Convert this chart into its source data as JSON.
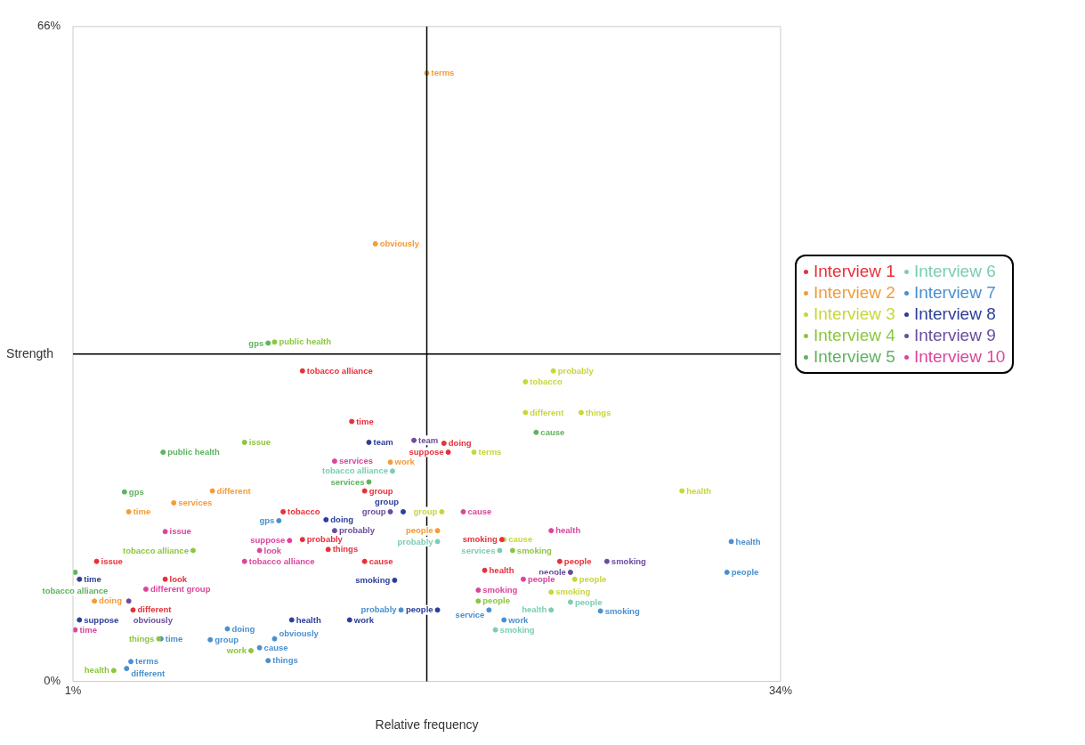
{
  "chart_data": {
    "type": "scatter",
    "xlabel": "Relative frequency",
    "ylabel": "Strength",
    "xlim": [
      1,
      34
    ],
    "ylim": [
      0,
      66
    ],
    "xticks": [
      {
        "value": 1,
        "label": "1%"
      },
      {
        "value": 34,
        "label": "34%"
      }
    ],
    "yticks": [
      {
        "value": 0,
        "label": "0%"
      },
      {
        "value": 66,
        "label": "66%"
      }
    ],
    "grid": false,
    "legend": "right",
    "marker": "circle",
    "ref_lines": [
      {
        "axis": "x",
        "value": 17.5,
        "color": "#000000"
      },
      {
        "axis": "y",
        "value": 33,
        "color": "#000000"
      }
    ],
    "series": [
      {
        "name": "Interview 1",
        "color": "#e8303a",
        "x": [
          11.7,
          14.0,
          18.5,
          18.3,
          14.6,
          10.8,
          11.7,
          12.9,
          14.6,
          2.1,
          21.0,
          23.7,
          20.2,
          5.3,
          3.8
        ],
        "values": [
          31.3,
          26.2,
          23.1,
          24.0,
          19.2,
          17.1,
          14.3,
          13.3,
          12.1,
          12.1,
          14.3,
          12.1,
          11.2,
          10.3,
          7.2
        ],
        "value_labels": [
          "tobacco alliance",
          "time",
          "suppose",
          "doing",
          "group",
          "tobacco",
          "probably",
          "things",
          "cause",
          "issue",
          "smoking",
          "people",
          "health",
          "look",
          "different"
        ]
      },
      {
        "name": "Interview 2",
        "color": "#f39c38",
        "x": [
          17.5,
          15.1,
          15.8,
          5.7,
          3.6,
          7.5,
          2.0,
          18.0
        ],
        "values": [
          61.3,
          44.1,
          22.1,
          18.0,
          17.1,
          19.2,
          8.1,
          15.2
        ],
        "value_labels": [
          "terms",
          "obviously",
          "work",
          "services",
          "time",
          "different",
          "doing",
          "people"
        ]
      },
      {
        "name": "Interview 3",
        "color": "#c8d63c",
        "x": [
          23.4,
          22.1,
          22.1,
          24.7,
          19.7,
          29.4,
          18.2,
          21.1,
          24.4,
          23.3
        ],
        "values": [
          31.3,
          30.2,
          27.1,
          27.1,
          23.1,
          19.2,
          17.1,
          14.3,
          10.3,
          9.0
        ],
        "value_labels": [
          "probably",
          "tobacco",
          "different",
          "things",
          "terms",
          "health",
          "group",
          "cause",
          "people",
          "smoking"
        ]
      },
      {
        "name": "Interview 4",
        "color": "#8cc63f",
        "x": [
          10.4,
          9.0,
          6.6,
          2.9,
          5.0,
          9.3,
          21.5,
          19.9
        ],
        "values": [
          34.2,
          24.1,
          13.2,
          1.1,
          4.3,
          3.1,
          13.2,
          8.1
        ],
        "value_labels": [
          "public health",
          "issue",
          "tobacco alliance",
          "health",
          "things",
          "work",
          "smoking",
          "people"
        ]
      },
      {
        "name": "Interview 5",
        "color": "#5fb35e",
        "x": [
          10.1,
          5.2,
          3.4,
          14.8,
          22.6,
          1.1
        ],
        "values": [
          34.1,
          23.1,
          19.1,
          20.1,
          25.1,
          11.0
        ],
        "value_labels": [
          "gps",
          "public health",
          "gps",
          "services",
          "cause",
          "tobacco alliance"
        ]
      },
      {
        "name": "Interview 6",
        "color": "#7ccdb5",
        "x": [
          15.9,
          24.2,
          23.3,
          20.7,
          20.9,
          18.0
        ],
        "values": [
          21.2,
          8.0,
          7.2,
          5.2,
          13.2,
          14.1
        ],
        "value_labels": [
          "tobacco alliance",
          "people",
          "health",
          "smoking",
          "services",
          "probably"
        ]
      },
      {
        "name": "Interview 7",
        "color": "#4a90d0",
        "x": [
          31.7,
          31.5,
          25.6,
          20.4,
          21.1,
          3.5,
          3.7,
          10.1,
          9.7,
          7.4,
          5.1,
          10.4,
          8.2,
          16.3,
          10.6
        ],
        "values": [
          14.1,
          11.0,
          7.1,
          7.2,
          6.2,
          1.3,
          2.0,
          2.1,
          3.4,
          4.2,
          4.3,
          4.3,
          5.3,
          7.2,
          16.2
        ],
        "value_labels": [
          "health",
          "people",
          "smoking",
          "service",
          "work",
          "different",
          "terms",
          "things",
          "cause",
          "group",
          "time",
          "obviously",
          "doing",
          "probably",
          "gps"
        ]
      },
      {
        "name": "Interview 8",
        "color": "#2c3e99",
        "x": [
          14.8,
          12.8,
          16.4,
          1.3,
          1.3,
          16.0,
          13.9,
          18.0,
          11.2
        ],
        "values": [
          24.1,
          16.3,
          17.1,
          10.3,
          6.2,
          10.2,
          6.2,
          7.2,
          6.2
        ],
        "value_labels": [
          "team",
          "doing",
          "group",
          "time",
          "suppose",
          "smoking",
          "work",
          "people",
          "health"
        ]
      },
      {
        "name": "Interview 9",
        "color": "#6a4c9c",
        "x": [
          16.9,
          15.8,
          13.2,
          24.2,
          25.9,
          3.6
        ],
        "values": [
          24.3,
          17.1,
          15.2,
          11.0,
          12.1,
          8.1
        ],
        "value_labels": [
          "team",
          "group",
          "probably",
          "people",
          "smoking",
          "obviously"
        ]
      },
      {
        "name": "Interview 10",
        "color": "#d9469c",
        "x": [
          13.2,
          5.3,
          9.0,
          11.1,
          19.2,
          23.3,
          19.9,
          22.0,
          4.4,
          1.1,
          9.7
        ],
        "values": [
          22.2,
          15.1,
          12.1,
          14.2,
          17.1,
          15.2,
          9.2,
          10.3,
          9.3,
          5.2,
          13.2
        ],
        "value_labels": [
          "services",
          "issue",
          "tobacco alliance",
          "suppose",
          "cause",
          "health",
          "smoking",
          "people",
          "different group",
          "time",
          "look"
        ]
      }
    ]
  }
}
